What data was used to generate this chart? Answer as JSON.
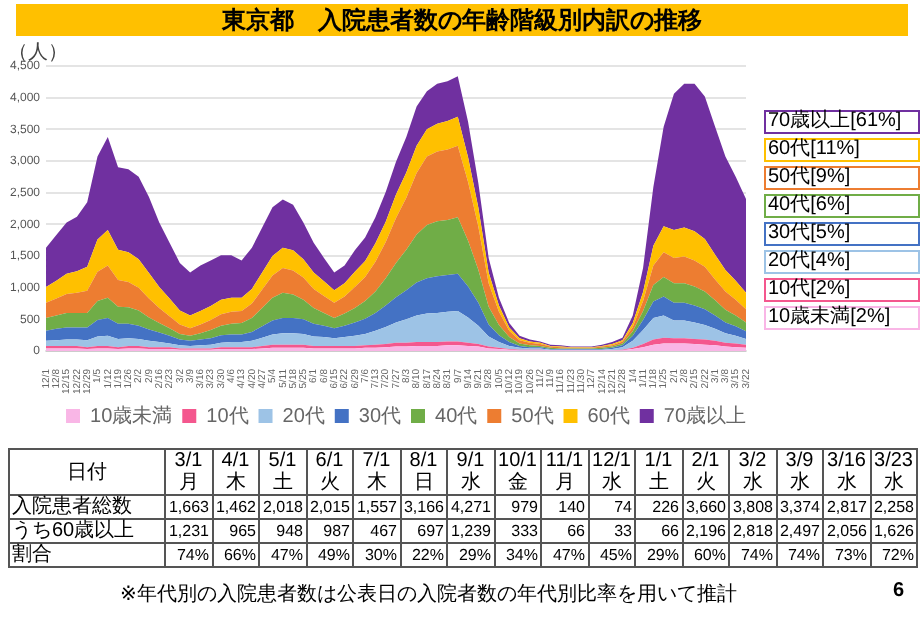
{
  "chart_data": {
    "type": "area",
    "stacked": true,
    "title": "東京都　入院患者数の年齢階級別内訳の推移",
    "ylabel": "（人）",
    "categories": [
      "12/1",
      "12/8",
      "12/15",
      "12/22",
      "12/29",
      "1/5",
      "1/12",
      "1/19",
      "1/26",
      "2/2",
      "2/9",
      "2/16",
      "2/23",
      "3/2",
      "3/9",
      "3/16",
      "3/23",
      "3/30",
      "4/6",
      "4/13",
      "4/20",
      "4/27",
      "5/4",
      "5/11",
      "5/18",
      "5/25",
      "6/1",
      "6/8",
      "6/15",
      "6/22",
      "6/29",
      "7/6",
      "7/13",
      "7/20",
      "7/27",
      "8/3",
      "8/10",
      "8/17",
      "8/24",
      "8/31",
      "9/7",
      "9/14",
      "9/21",
      "9/28",
      "10/5",
      "10/12",
      "10/19",
      "10/26",
      "11/2",
      "11/9",
      "11/16",
      "11/23",
      "11/30",
      "12/7",
      "12/14",
      "12/21",
      "12/28",
      "1/4",
      "1/11",
      "1/18",
      "1/25",
      "2/1",
      "2/8",
      "2/15",
      "2/22",
      "3/1",
      "3/8",
      "3/15",
      "3/22"
    ],
    "ylim": [
      0,
      4500
    ],
    "yticks": [
      0,
      500,
      {
        "value": 1000,
        "label": "1,000"
      },
      {
        "value": 1500,
        "label": "1,500"
      },
      {
        "value": 2000,
        "label": "2,000"
      },
      {
        "value": 2500,
        "label": "2,500"
      },
      {
        "value": 3000,
        "label": "3,000"
      },
      {
        "value": 3500,
        "label": "3,500"
      },
      {
        "value": 4000,
        "label": "4,000"
      },
      {
        "value": 4500,
        "label": "4,500"
      }
    ],
    "grid": "y",
    "legend": "bottom",
    "series": [
      {
        "name": "10歳未満",
        "color": "#f9b6e6",
        "values": [
          40,
          40,
          40,
          40,
          30,
          40,
          40,
          30,
          40,
          40,
          30,
          30,
          30,
          20,
          20,
          20,
          20,
          30,
          30,
          30,
          30,
          40,
          50,
          50,
          50,
          50,
          40,
          40,
          40,
          40,
          40,
          50,
          50,
          60,
          70,
          70,
          80,
          80,
          80,
          90,
          90,
          80,
          70,
          40,
          30,
          20,
          10,
          10,
          10,
          10,
          10,
          10,
          10,
          10,
          10,
          10,
          10,
          30,
          60,
          100,
          120,
          120,
          120,
          110,
          100,
          90,
          70,
          60,
          50
        ]
      },
      {
        "name": "10代",
        "color": "#f4578e",
        "values": [
          40,
          40,
          40,
          40,
          30,
          40,
          40,
          30,
          40,
          40,
          30,
          30,
          30,
          20,
          20,
          20,
          20,
          30,
          30,
          30,
          30,
          40,
          50,
          50,
          50,
          50,
          40,
          40,
          40,
          40,
          40,
          40,
          50,
          50,
          60,
          60,
          60,
          60,
          60,
          60,
          60,
          50,
          40,
          30,
          20,
          10,
          10,
          10,
          10,
          0,
          0,
          0,
          0,
          0,
          0,
          0,
          10,
          20,
          50,
          80,
          90,
          80,
          80,
          80,
          80,
          70,
          60,
          60,
          50
        ]
      },
      {
        "name": "20代",
        "color": "#9dc3e6",
        "values": [
          80,
          90,
          100,
          100,
          110,
          150,
          160,
          130,
          120,
          110,
          100,
          80,
          60,
          50,
          40,
          50,
          60,
          70,
          80,
          80,
          100,
          130,
          160,
          180,
          180,
          170,
          150,
          140,
          120,
          140,
          160,
          180,
          220,
          270,
          320,
          370,
          420,
          450,
          460,
          470,
          480,
          400,
          290,
          160,
          90,
          50,
          30,
          20,
          20,
          10,
          10,
          10,
          10,
          10,
          10,
          20,
          40,
          110,
          220,
          340,
          350,
          280,
          280,
          260,
          230,
          190,
          150,
          120,
          90
        ]
      },
      {
        "name": "30代",
        "color": "#4472c4",
        "values": [
          160,
          180,
          190,
          190,
          200,
          260,
          280,
          240,
          230,
          210,
          180,
          150,
          120,
          90,
          80,
          90,
          100,
          120,
          120,
          120,
          140,
          180,
          220,
          240,
          240,
          230,
          200,
          180,
          160,
          180,
          210,
          240,
          280,
          340,
          400,
          460,
          520,
          560,
          580,
          580,
          590,
          490,
          360,
          190,
          110,
          60,
          30,
          20,
          20,
          10,
          10,
          10,
          10,
          10,
          10,
          20,
          30,
          80,
          160,
          260,
          300,
          280,
          280,
          270,
          250,
          210,
          170,
          150,
          120
        ]
      },
      {
        "name": "40代",
        "color": "#70ad47",
        "values": [
          200,
          210,
          230,
          230,
          230,
          300,
          320,
          270,
          260,
          240,
          190,
          150,
          120,
          90,
          80,
          100,
          130,
          150,
          170,
          180,
          220,
          290,
          360,
          400,
          370,
          310,
          250,
          200,
          160,
          190,
          230,
          280,
          340,
          430,
          540,
          640,
          760,
          840,
          870,
          870,
          890,
          720,
          520,
          280,
          160,
          80,
          40,
          30,
          20,
          20,
          10,
          10,
          10,
          10,
          20,
          20,
          30,
          70,
          140,
          260,
          310,
          310,
          310,
          300,
          280,
          240,
          200,
          170,
          140
        ]
      },
      {
        "name": "50代",
        "color": "#ed7d31",
        "values": [
          240,
          270,
          300,
          320,
          350,
          460,
          510,
          420,
          400,
          360,
          300,
          240,
          190,
          150,
          120,
          140,
          160,
          180,
          190,
          190,
          230,
          290,
          350,
          390,
          380,
          350,
          300,
          270,
          240,
          270,
          330,
          380,
          470,
          570,
          710,
          820,
          970,
          1080,
          1100,
          1110,
          1130,
          930,
          680,
          370,
          210,
          100,
          50,
          40,
          30,
          20,
          20,
          10,
          10,
          10,
          20,
          20,
          30,
          70,
          160,
          310,
          390,
          400,
          420,
          410,
          390,
          330,
          290,
          250,
          210
        ]
      },
      {
        "name": "60代",
        "color": "#ffc000",
        "values": [
          250,
          280,
          320,
          340,
          380,
          510,
          560,
          480,
          470,
          450,
          400,
          330,
          280,
          220,
          200,
          210,
          220,
          230,
          220,
          210,
          230,
          270,
          310,
          320,
          320,
          290,
          260,
          230,
          200,
          210,
          240,
          250,
          290,
          320,
          370,
          400,
          430,
          430,
          440,
          450,
          460,
          390,
          300,
          170,
          100,
          50,
          30,
          20,
          20,
          10,
          10,
          10,
          10,
          10,
          10,
          20,
          20,
          60,
          140,
          310,
          410,
          440,
          460,
          460,
          440,
          390,
          340,
          300,
          260
        ]
      },
      {
        "name": "70歳以上",
        "color": "#7030a0",
        "values": [
          620,
          720,
          810,
          860,
          1020,
          1310,
          1470,
          1300,
          1310,
          1300,
          1200,
          1020,
          880,
          750,
          680,
          720,
          720,
          700,
          670,
          590,
          650,
          710,
          770,
          760,
          720,
          580,
          470,
          370,
          280,
          280,
          340,
          370,
          410,
          470,
          520,
          560,
          620,
          600,
          630,
          630,
          640,
          560,
          390,
          230,
          120,
          70,
          40,
          30,
          20,
          20,
          20,
          10,
          10,
          10,
          20,
          30,
          40,
          120,
          380,
          930,
          1570,
          2150,
          2270,
          2330,
          2250,
          2020,
          1790,
          1640,
          1480
        ]
      }
    ],
    "annotations": [
      "70歳以上[61%]",
      "60代[11%]",
      "50代[9%]",
      "40代[6%]",
      "30代[5%]",
      "20代[4%]",
      "10代[2%]",
      "10歳未満[2%]",
      "日付",
      "3/1月",
      "4/1木",
      "5/1土",
      "6/1火",
      "7/1木",
      "8/1日",
      "9/1水",
      "10/1金",
      "11/1月",
      "12/1水",
      "1/1土",
      "2/1火",
      "3/2水",
      "3/9水",
      "3/16水",
      "3/23水",
      "入院患者総数",
      "1,663",
      "1,462",
      "2,018",
      "2,015",
      "1,557",
      "3,166",
      "4,271",
      "979",
      "140",
      "74",
      "226",
      "3,660",
      "3,808",
      "3,374",
      "2,817",
      "2,258",
      "うち60歳以上",
      "1,231",
      "965",
      "948",
      "987",
      "467",
      "697",
      "1,239",
      "333",
      "66",
      "33",
      "66",
      "2,196",
      "2,818",
      "2,497",
      "2,056",
      "1,626",
      "割合",
      "74%",
      "66%",
      "47%",
      "49%",
      "30%",
      "22%",
      "29%",
      "34%",
      "47%",
      "45%",
      "29%",
      "60%",
      "74%",
      "74%",
      "73%",
      "72%",
      "※年代別の入院患者数は公表日の入院者数の年代別比率を用いて推計",
      "6"
    ]
  }
}
